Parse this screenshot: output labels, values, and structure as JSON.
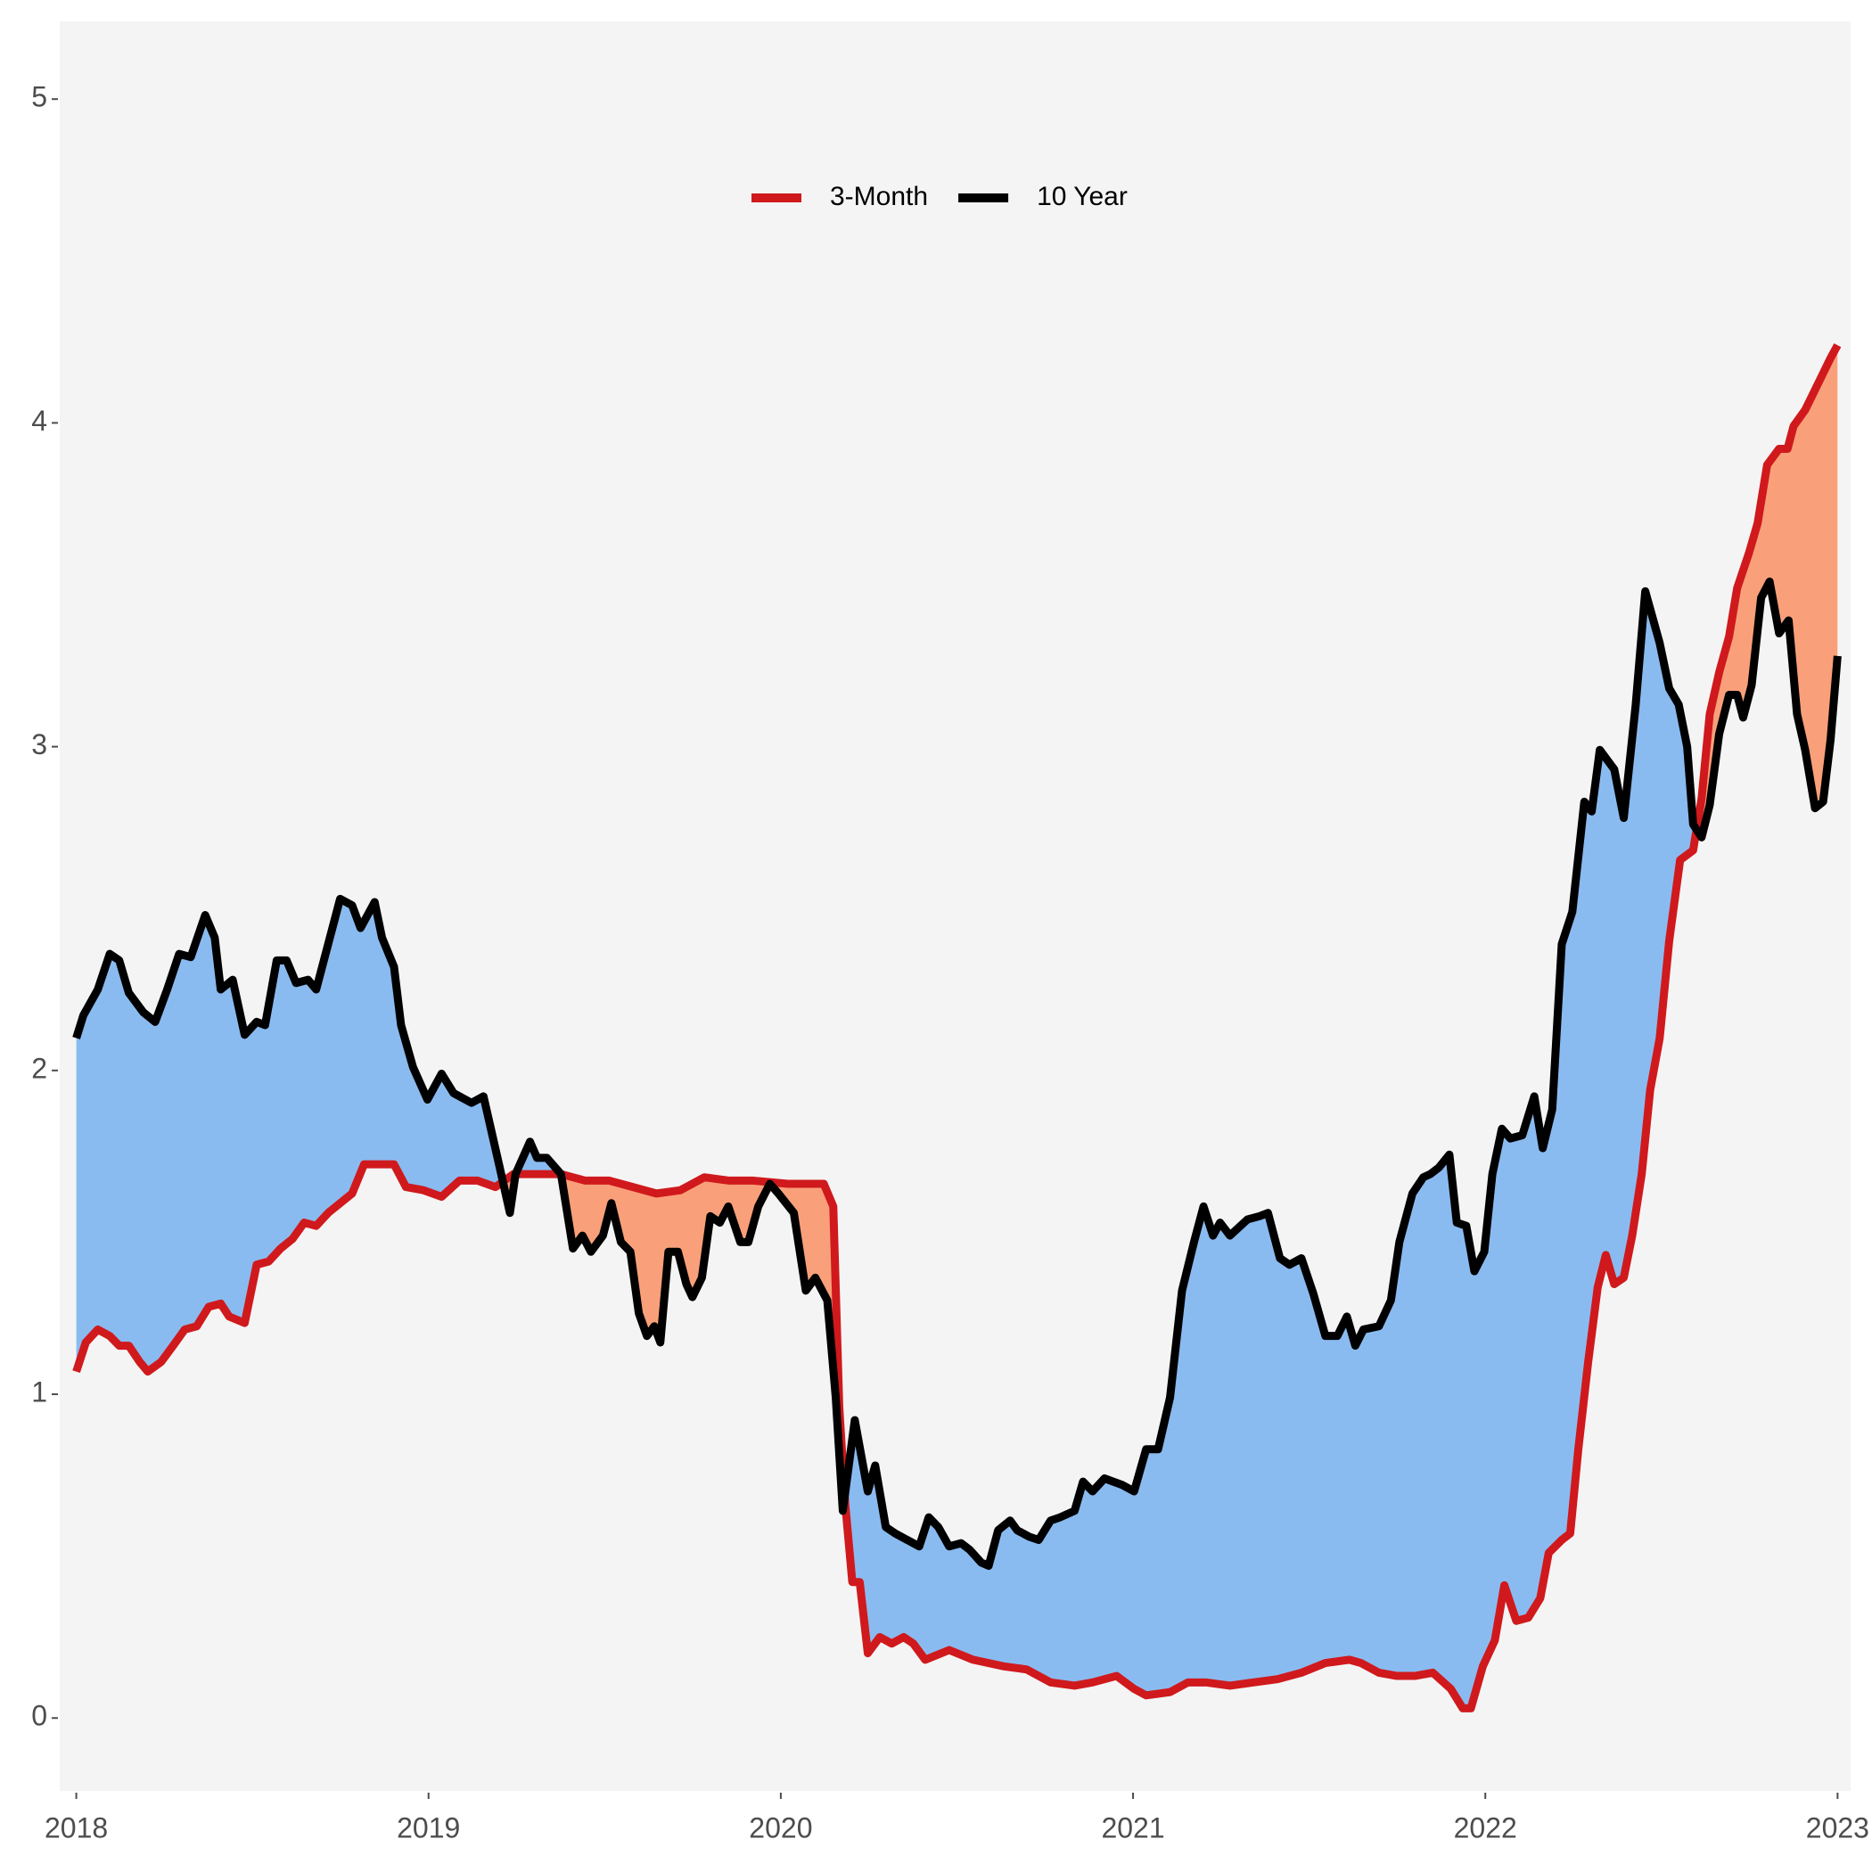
{
  "chart_data": {
    "type": "line",
    "series": [
      {
        "name": "3-Month",
        "color": "#d0191c",
        "x": [
          2018.0,
          2018.027,
          2018.061,
          2018.095,
          2018.122,
          2018.149,
          2018.18,
          2018.203,
          2018.241,
          2018.275,
          2018.308,
          2018.342,
          2018.376,
          2018.41,
          2018.434,
          2018.478,
          2018.512,
          2018.546,
          2018.58,
          2018.614,
          2018.647,
          2018.681,
          2018.715,
          2018.749,
          2018.783,
          2018.817,
          2018.851,
          2018.902,
          2018.936,
          2018.986,
          2019.037,
          2019.088,
          2019.139,
          2019.19,
          2019.241,
          2019.308,
          2019.376,
          2019.444,
          2019.512,
          2019.58,
          2019.647,
          2019.715,
          2019.783,
          2019.851,
          2019.919,
          2020.02,
          2020.122,
          2020.149,
          2020.166,
          2020.183,
          2020.203,
          2020.224,
          2020.247,
          2020.281,
          2020.315,
          2020.349,
          2020.376,
          2020.41,
          2020.478,
          2020.546,
          2020.631,
          2020.698,
          2020.766,
          2020.834,
          2020.885,
          2020.953,
          2021.003,
          2021.037,
          2021.105,
          2021.156,
          2021.207,
          2021.275,
          2021.342,
          2021.41,
          2021.478,
          2021.546,
          2021.614,
          2021.647,
          2021.698,
          2021.749,
          2021.8,
          2021.851,
          2021.902,
          2021.936,
          2021.959,
          2021.993,
          2022.027,
          2022.054,
          2022.088,
          2022.122,
          2022.156,
          2022.18,
          2022.217,
          2022.241,
          2022.264,
          2022.292,
          2022.319,
          2022.342,
          2022.366,
          2022.393,
          2022.417,
          2022.444,
          2022.468,
          2022.495,
          2022.522,
          2022.553,
          2022.59,
          2022.614,
          2022.637,
          2022.664,
          2022.692,
          2022.715,
          2022.749,
          2022.773,
          2022.8,
          2022.834,
          2022.858,
          2022.875,
          2022.908,
          2022.953,
          2022.98,
          2023.0
        ],
        "values": [
          1.07,
          1.16,
          1.2,
          1.18,
          1.15,
          1.15,
          1.1,
          1.07,
          1.1,
          1.15,
          1.2,
          1.21,
          1.27,
          1.28,
          1.24,
          1.22,
          1.4,
          1.41,
          1.45,
          1.48,
          1.53,
          1.52,
          1.56,
          1.59,
          1.62,
          1.71,
          1.71,
          1.71,
          1.64,
          1.63,
          1.61,
          1.66,
          1.66,
          1.64,
          1.68,
          1.68,
          1.68,
          1.66,
          1.66,
          1.64,
          1.62,
          1.63,
          1.67,
          1.66,
          1.66,
          1.65,
          1.65,
          1.58,
          0.96,
          0.66,
          0.42,
          0.42,
          0.2,
          0.25,
          0.23,
          0.25,
          0.23,
          0.18,
          0.21,
          0.18,
          0.16,
          0.15,
          0.11,
          0.1,
          0.11,
          0.13,
          0.09,
          0.07,
          0.08,
          0.11,
          0.11,
          0.1,
          0.11,
          0.12,
          0.14,
          0.17,
          0.18,
          0.17,
          0.14,
          0.13,
          0.13,
          0.14,
          0.09,
          0.03,
          0.03,
          0.16,
          0.24,
          0.41,
          0.3,
          0.31,
          0.37,
          0.51,
          0.55,
          0.57,
          0.83,
          1.1,
          1.33,
          1.43,
          1.34,
          1.36,
          1.49,
          1.68,
          1.94,
          2.1,
          2.4,
          2.65,
          2.68,
          2.84,
          3.1,
          3.23,
          3.34,
          3.49,
          3.6,
          3.69,
          3.87,
          3.92,
          3.92,
          3.99,
          4.04,
          4.14,
          4.2,
          4.24
        ]
      },
      {
        "name": "10 Year",
        "color": "#000000",
        "x": [
          2018.0,
          2018.02,
          2018.061,
          2018.095,
          2018.122,
          2018.149,
          2018.19,
          2018.224,
          2018.258,
          2018.292,
          2018.325,
          2018.366,
          2018.393,
          2018.41,
          2018.444,
          2018.478,
          2018.512,
          2018.536,
          2018.569,
          2018.597,
          2018.624,
          2018.658,
          2018.681,
          2018.715,
          2018.749,
          2018.783,
          2018.807,
          2018.847,
          2018.868,
          2018.902,
          2018.922,
          2018.956,
          2018.997,
          2019.037,
          2019.071,
          2019.122,
          2019.156,
          2019.2,
          2019.231,
          2019.247,
          2019.288,
          2019.308,
          2019.336,
          2019.376,
          2019.41,
          2019.437,
          2019.461,
          2019.495,
          2019.519,
          2019.546,
          2019.573,
          2019.597,
          2019.62,
          2019.641,
          2019.658,
          2019.681,
          2019.708,
          2019.732,
          2019.749,
          2019.776,
          2019.8,
          2019.827,
          2019.851,
          2019.885,
          2019.908,
          2019.936,
          2019.969,
          2019.993,
          2020.037,
          2020.071,
          2020.098,
          2020.132,
          2020.156,
          2020.176,
          2020.21,
          2020.247,
          2020.268,
          2020.298,
          2020.325,
          2020.359,
          2020.393,
          2020.42,
          2020.447,
          2020.478,
          2020.512,
          2020.536,
          2020.569,
          2020.59,
          2020.617,
          2020.651,
          2020.671,
          2020.705,
          2020.732,
          2020.766,
          2020.793,
          2020.834,
          2020.858,
          2020.885,
          2020.919,
          2020.969,
          2021.003,
          2021.037,
          2021.071,
          2021.105,
          2021.139,
          2021.173,
          2021.2,
          2021.227,
          2021.247,
          2021.275,
          2021.325,
          2021.359,
          2021.383,
          2021.417,
          2021.444,
          2021.478,
          2021.512,
          2021.546,
          2021.58,
          2021.607,
          2021.631,
          2021.654,
          2021.698,
          2021.732,
          2021.756,
          2021.793,
          2021.824,
          2021.844,
          2021.868,
          2021.898,
          2021.919,
          2021.946,
          2021.969,
          2021.997,
          2022.02,
          2022.047,
          2022.071,
          2022.105,
          2022.139,
          2022.163,
          2022.19,
          2022.217,
          2022.247,
          2022.281,
          2022.302,
          2022.325,
          2022.366,
          2022.393,
          2022.427,
          2022.454,
          2022.495,
          2022.522,
          2022.549,
          2022.573,
          2022.59,
          2022.614,
          2022.637,
          2022.664,
          2022.692,
          2022.715,
          2022.732,
          2022.756,
          2022.783,
          2022.807,
          2022.834,
          2022.861,
          2022.885,
          2022.908,
          2022.936,
          2022.959,
          2022.98,
          2023.0
        ],
        "values": [
          2.1,
          2.17,
          2.25,
          2.36,
          2.34,
          2.24,
          2.18,
          2.15,
          2.25,
          2.36,
          2.35,
          2.48,
          2.41,
          2.25,
          2.28,
          2.11,
          2.15,
          2.14,
          2.34,
          2.34,
          2.27,
          2.28,
          2.25,
          2.39,
          2.53,
          2.51,
          2.44,
          2.52,
          2.41,
          2.32,
          2.14,
          2.01,
          1.91,
          1.99,
          1.93,
          1.9,
          1.92,
          1.71,
          1.56,
          1.68,
          1.78,
          1.73,
          1.73,
          1.68,
          1.45,
          1.49,
          1.44,
          1.49,
          1.59,
          1.47,
          1.44,
          1.25,
          1.18,
          1.21,
          1.16,
          1.44,
          1.44,
          1.34,
          1.3,
          1.36,
          1.55,
          1.53,
          1.58,
          1.47,
          1.47,
          1.58,
          1.65,
          1.62,
          1.56,
          1.32,
          1.36,
          1.29,
          0.99,
          0.64,
          0.92,
          0.7,
          0.78,
          0.59,
          0.57,
          0.55,
          0.53,
          0.62,
          0.59,
          0.53,
          0.54,
          0.52,
          0.48,
          0.47,
          0.58,
          0.61,
          0.58,
          0.56,
          0.55,
          0.61,
          0.62,
          0.64,
          0.73,
          0.7,
          0.74,
          0.72,
          0.7,
          0.83,
          0.83,
          0.99,
          1.32,
          1.47,
          1.58,
          1.49,
          1.53,
          1.49,
          1.54,
          1.55,
          1.56,
          1.42,
          1.4,
          1.42,
          1.31,
          1.18,
          1.18,
          1.24,
          1.15,
          1.2,
          1.21,
          1.29,
          1.47,
          1.62,
          1.67,
          1.68,
          1.7,
          1.74,
          1.53,
          1.52,
          1.38,
          1.44,
          1.68,
          1.82,
          1.79,
          1.8,
          1.92,
          1.76,
          1.88,
          2.39,
          2.49,
          2.83,
          2.8,
          2.99,
          2.93,
          2.78,
          3.13,
          3.48,
          3.32,
          3.18,
          3.13,
          3.0,
          2.76,
          2.72,
          2.82,
          3.04,
          3.16,
          3.16,
          3.09,
          3.19,
          3.46,
          3.51,
          3.35,
          3.39,
          3.1,
          2.99,
          2.81,
          2.83,
          3.02,
          3.28
        ]
      }
    ],
    "fill_between": {
      "above_color": "#8abbf0",
      "below_color": "#f9a07a"
    },
    "xlim": [
      2017.953,
      2023.037
    ],
    "xticks": [
      2018,
      2019,
      2020,
      2021,
      2022,
      2023
    ],
    "ylim": [
      -0.225,
      5.24
    ],
    "yticks": [
      0,
      1,
      2,
      3,
      4,
      5
    ],
    "legend": "top",
    "grid": false
  }
}
